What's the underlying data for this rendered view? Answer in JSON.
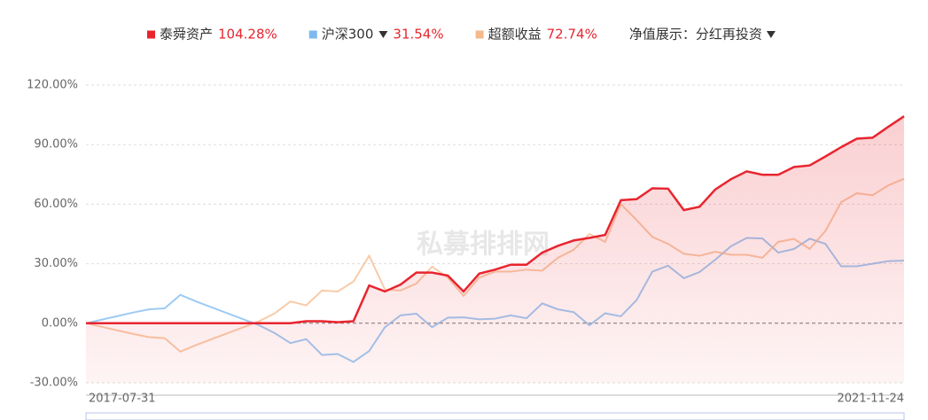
{
  "chart_data": {
    "type": "line",
    "categories": [
      "2017-07-31",
      null,
      null,
      null,
      null,
      null,
      null,
      null,
      null,
      null,
      null,
      null,
      null,
      null,
      null,
      null,
      null,
      null,
      null,
      null,
      null,
      null,
      null,
      null,
      null,
      null,
      null,
      null,
      null,
      null,
      null,
      null,
      null,
      null,
      null,
      null,
      null,
      null,
      null,
      null,
      null,
      null,
      null,
      null,
      null,
      null,
      null,
      null,
      null,
      null,
      null,
      null,
      "2021-11-24"
    ],
    "series": [
      {
        "name": "泰舜资产",
        "latest_label": "104.28%",
        "color": "#e8252f",
        "area": true,
        "values": [
          0,
          0,
          0,
          0,
          0,
          0,
          0,
          0,
          0,
          0,
          0,
          0,
          0,
          0,
          1,
          1,
          0.5,
          1,
          19,
          16,
          19.5,
          25.5,
          25.5,
          24,
          16,
          25,
          27,
          29.5,
          29.5,
          35.6,
          39,
          41.7,
          43,
          44.5,
          62,
          62.5,
          68,
          67.8,
          57,
          58.7,
          67.4,
          72.6,
          76.5,
          74.8,
          74.8,
          78.7,
          79.5,
          84,
          88.7,
          93,
          93.5,
          99,
          104.28
        ]
      },
      {
        "name": "沪深300",
        "latest_label": "31.54%",
        "color": "#7db8f0",
        "dropdown": true,
        "values": [
          0,
          1.8,
          3.6,
          5.4,
          7,
          7.5,
          14.3,
          11,
          8,
          5,
          2,
          -1,
          -5,
          -10,
          -8,
          -16,
          -15.5,
          -19.5,
          -14,
          -2,
          4,
          4.8,
          -2,
          2.8,
          3,
          2,
          2.3,
          4,
          2.5,
          10,
          7,
          5.6,
          -1,
          5,
          3.5,
          11.7,
          26,
          29,
          22.7,
          25.8,
          32,
          38.8,
          43,
          42.7,
          35.6,
          37.4,
          42.6,
          40,
          28.7,
          28.7,
          30,
          31.3,
          31.54
        ]
      },
      {
        "name": "超额收益",
        "latest_label": "72.74%",
        "color": "#f5b98c",
        "values": [
          0,
          -1.8,
          -3.6,
          -5.4,
          -7,
          -7.5,
          -14.3,
          -11,
          -8,
          -5,
          -2,
          1,
          5,
          11,
          9,
          16.5,
          16,
          21,
          34,
          17,
          16.5,
          20,
          28.5,
          23,
          13.8,
          23,
          26,
          26,
          27,
          26.5,
          33,
          37,
          45,
          41,
          60,
          52,
          43.5,
          40,
          35,
          34,
          36,
          34.5,
          34.5,
          33,
          41,
          42.5,
          37.5,
          46.5,
          61,
          65.5,
          64.5,
          69.5,
          72.74
        ]
      }
    ],
    "display_mode": {
      "label": "净值展示：",
      "value": "分红再投资"
    },
    "watermark": "私募排排网",
    "ylim": [
      -30,
      120
    ],
    "yticks": [
      {
        "value": -30,
        "label": "-30.00%"
      },
      {
        "value": 0,
        "label": "0.00%"
      },
      {
        "value": 30,
        "label": "30.00%"
      },
      {
        "value": 60,
        "label": "60.00%"
      },
      {
        "value": 90,
        "label": "90.00%"
      },
      {
        "value": 120,
        "label": "120.00%"
      }
    ],
    "grid": true
  }
}
